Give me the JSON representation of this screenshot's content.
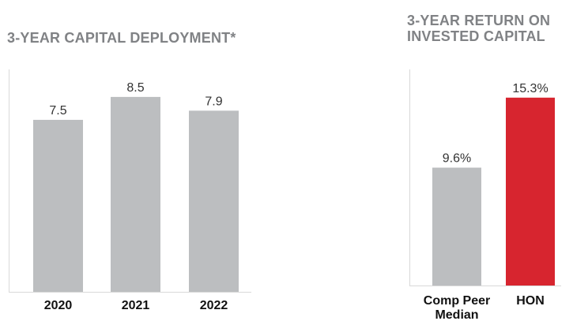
{
  "chart_data": [
    {
      "type": "bar",
      "title": "3-YEAR CAPITAL DEPLOYMENT*",
      "categories": [
        "2020",
        "2021",
        "2022"
      ],
      "values": [
        7.5,
        8.5,
        7.9
      ],
      "value_labels": [
        "7.5",
        "8.5",
        "7.9"
      ],
      "ylim": [
        0,
        9.7
      ],
      "grid": false,
      "colors": [
        "#bcbec0",
        "#bcbec0",
        "#bcbec0"
      ]
    },
    {
      "type": "bar",
      "title": "3-YEAR RETURN ON\nINVESTED CAPITAL",
      "categories": [
        "Comp Peer\nMedian",
        "HON"
      ],
      "values": [
        9.6,
        15.3
      ],
      "value_labels": [
        "9.6%",
        "15.3%"
      ],
      "ylim": [
        0,
        17.6
      ],
      "grid": false,
      "colors": [
        "#bcbec0",
        "#d7252f"
      ]
    }
  ]
}
